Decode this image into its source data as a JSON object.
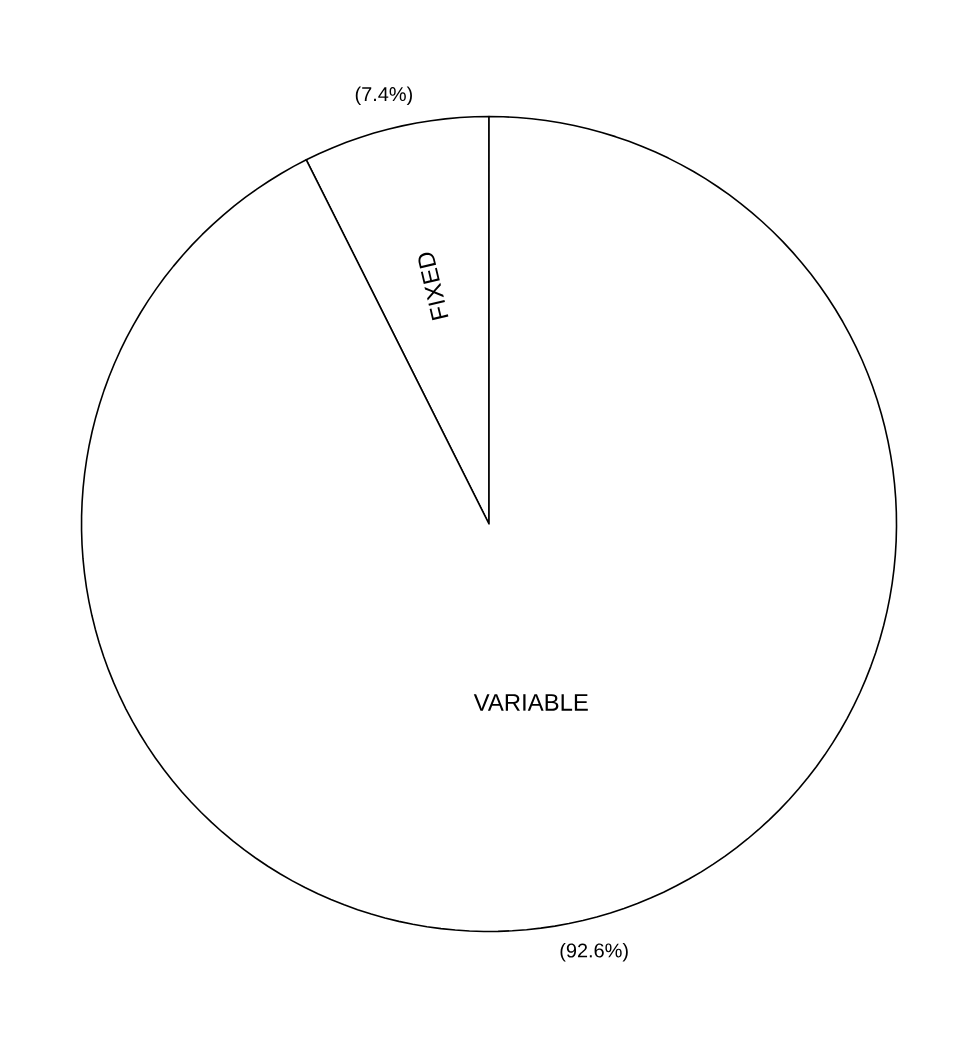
{
  "chart_data": {
    "type": "pie",
    "categories": [
      "FIXED",
      "VARIABLE"
    ],
    "values": [
      7.4,
      92.6
    ],
    "value_labels": [
      "(7.4%)",
      "(92.6%)"
    ],
    "colors": [
      "#ffffff",
      "#ffffff"
    ]
  }
}
